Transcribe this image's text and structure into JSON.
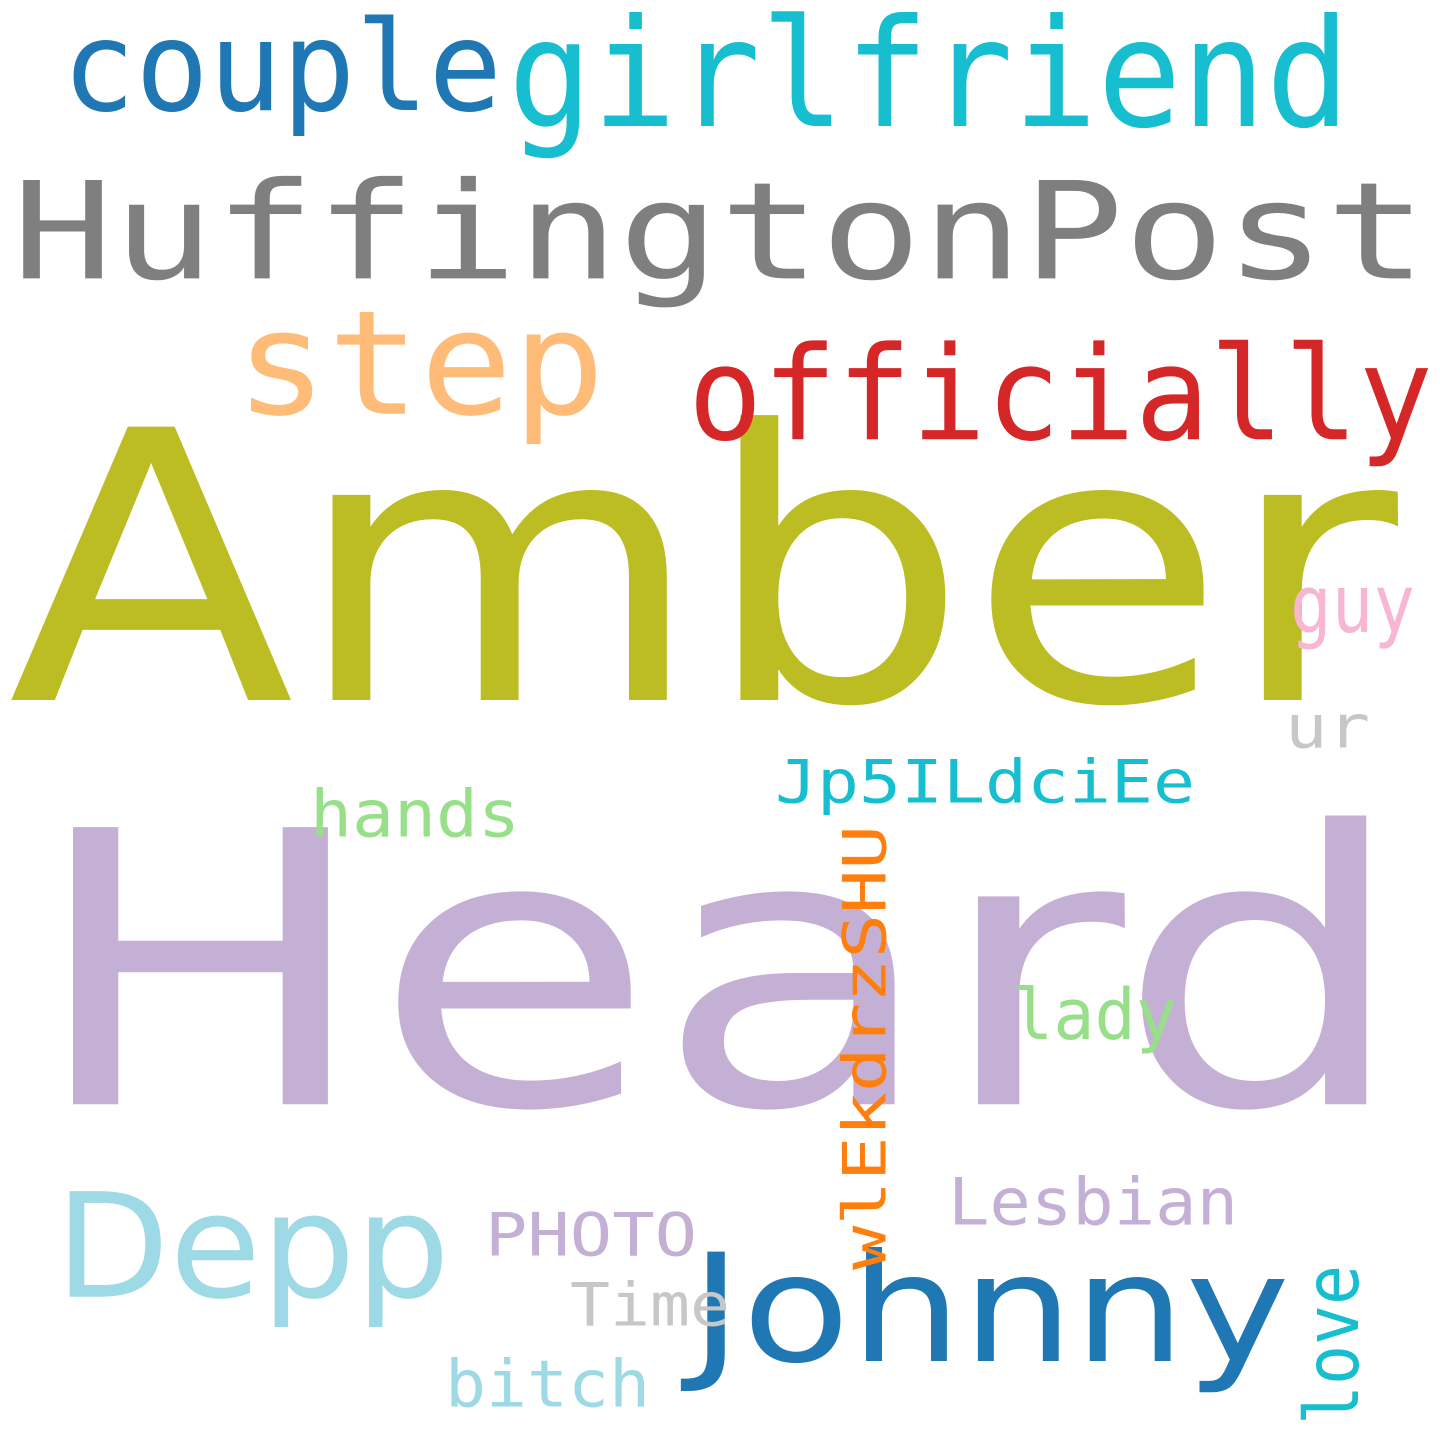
{
  "cloud": {
    "background": "#ffffff",
    "words": [
      {
        "text": "Heard",
        "color": "#c5b0d5"
      },
      {
        "text": "Amber",
        "color": "#bcbd22"
      },
      {
        "text": "HuffingtonPost",
        "color": "#7f7f7f"
      },
      {
        "text": "girlfriend",
        "color": "#17becf"
      },
      {
        "text": "couple",
        "color": "#1f77b4"
      },
      {
        "text": "step",
        "color": "#ffbb78"
      },
      {
        "text": "officially",
        "color": "#d62728"
      },
      {
        "text": "Johnny",
        "color": "#1f77b4"
      },
      {
        "text": "Depp",
        "color": "#9edae5"
      },
      {
        "text": "Jp5ILdciEe",
        "color": "#17becf"
      },
      {
        "text": "wlEkdrzSHU",
        "color": "#ff7f0e"
      },
      {
        "text": "hands",
        "color": "#98df8a"
      },
      {
        "text": "lady",
        "color": "#98df8a"
      },
      {
        "text": "guy",
        "color": "#f7b6d2"
      },
      {
        "text": "ur",
        "color": "#c7c7c7"
      },
      {
        "text": "Lesbian",
        "color": "#c5b0d5"
      },
      {
        "text": "PHOTO",
        "color": "#c5b0d5"
      },
      {
        "text": "Time",
        "color": "#c7c7c7"
      },
      {
        "text": "bitch",
        "color": "#9edae5"
      },
      {
        "text": "love",
        "color": "#17becf"
      }
    ]
  }
}
